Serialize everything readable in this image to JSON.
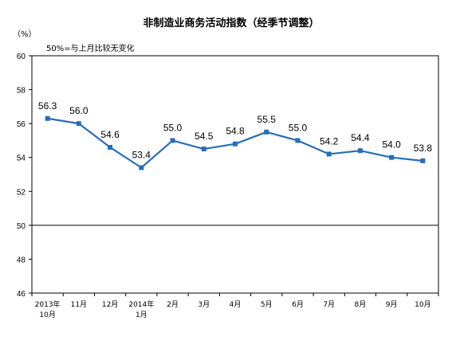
{
  "chart_data": {
    "type": "line",
    "title": "非制造业商务活动指数（经季节调整）",
    "ylabel": "（%）",
    "annotation": "50%=与上月比较无变化",
    "categories": [
      [
        "2013年",
        "10月"
      ],
      [
        "11月"
      ],
      [
        "12月"
      ],
      [
        "2014年",
        "1月"
      ],
      [
        "2月"
      ],
      [
        "3月"
      ],
      [
        "4月"
      ],
      [
        "5月"
      ],
      [
        "6月"
      ],
      [
        "7月"
      ],
      [
        "8月"
      ],
      [
        "9月"
      ],
      [
        "10月"
      ]
    ],
    "series": [
      {
        "values": [
          56.3,
          56.0,
          54.6,
          53.4,
          55.0,
          54.5,
          54.8,
          55.5,
          55.0,
          54.2,
          54.4,
          54.0,
          53.8
        ],
        "color": "#2a6db5"
      }
    ],
    "data_labels": [
      "56.3",
      "56.0",
      "54.6",
      "53.4",
      "55.0",
      "54.5",
      "54.8",
      "55.5",
      "55.0",
      "54.2",
      "54.4",
      "54.0",
      "53.8"
    ],
    "ylim": [
      46,
      60
    ],
    "yticks": [
      46,
      48,
      50,
      52,
      54,
      56,
      58,
      60
    ],
    "reference_line": 50,
    "grid": false
  }
}
